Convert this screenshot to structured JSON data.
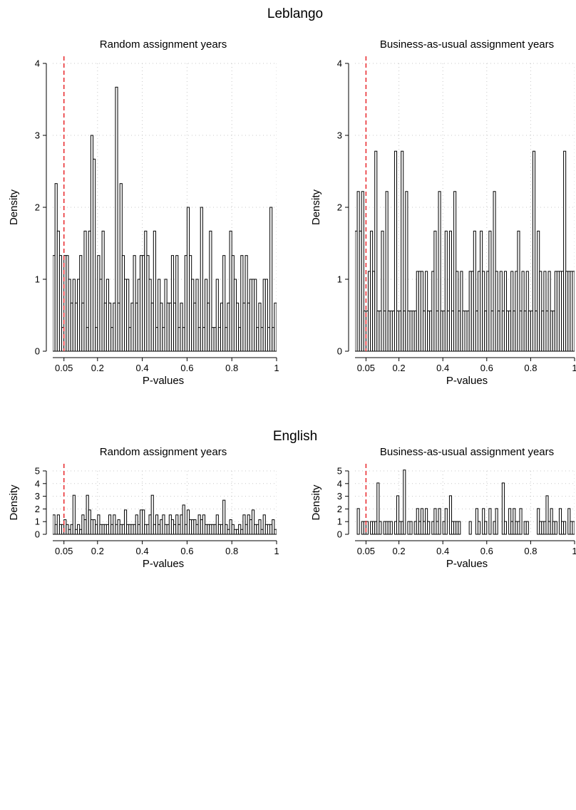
{
  "sections": [
    {
      "title": "Leblango"
    },
    {
      "title": "English"
    }
  ],
  "chart_data": [
    {
      "type": "bar",
      "section": "Leblango",
      "title": "Random assignment years",
      "xlabel": "P-values",
      "ylabel": "Density",
      "xlim": [
        0,
        1
      ],
      "ylim": [
        0,
        4
      ],
      "xticks": [
        0.05,
        0.2,
        0.4,
        0.6,
        0.8,
        1
      ],
      "xtick_labels": [
        "0.05",
        "0.2",
        "0.4",
        "0.6",
        "0.8",
        "1"
      ],
      "yticks": [
        0,
        1,
        2,
        3,
        4
      ],
      "ytick_labels": [
        "0",
        "1",
        "2",
        "3",
        "4"
      ],
      "reference_line": {
        "x": 0.05,
        "style": "dashed",
        "color": "#e8262a"
      },
      "grid": true,
      "bar_color": "#ffffff",
      "bar_edge": "#000000",
      "bin_width": 0.01,
      "bin_start": 0,
      "values": [
        1.33,
        2.33,
        1.67,
        1.33,
        0.33,
        1.33,
        1.33,
        1.0,
        0.67,
        1.0,
        0.67,
        1.0,
        1.33,
        0.67,
        1.67,
        0.33,
        1.67,
        3.0,
        2.67,
        0.33,
        1.33,
        1.0,
        1.67,
        0.67,
        1.0,
        0.67,
        0.33,
        0.67,
        3.67,
        0.67,
        2.33,
        1.33,
        1.0,
        1.0,
        0.33,
        0.67,
        1.33,
        0.67,
        1.0,
        1.33,
        1.33,
        1.67,
        1.33,
        1.0,
        0.67,
        1.67,
        0.33,
        1.0,
        0.67,
        0.33,
        1.0,
        0.67,
        0.67,
        1.33,
        0.67,
        1.33,
        0.33,
        0.67,
        0.33,
        1.33,
        2.0,
        1.33,
        1.0,
        0.67,
        1.0,
        0.33,
        2.0,
        0.33,
        1.0,
        0.67,
        1.67,
        0.33,
        0.33,
        1.0,
        0.33,
        0.67,
        1.33,
        0.33,
        0.67,
        1.67,
        1.33,
        1.0,
        0.67,
        0.33,
        1.33,
        0.67,
        1.33,
        0.67,
        1.0,
        1.0,
        1.0,
        0.33,
        0.67,
        0.33,
        1.0,
        1.0,
        0.33,
        2.0,
        0.33,
        0.67
      ]
    },
    {
      "type": "bar",
      "section": "Leblango",
      "title": "Business-as-usual assignment years",
      "xlabel": "P-values",
      "ylabel": "Density",
      "xlim": [
        0,
        1
      ],
      "ylim": [
        0,
        4
      ],
      "xticks": [
        0.05,
        0.2,
        0.4,
        0.6,
        0.8,
        1
      ],
      "xtick_labels": [
        "0.05",
        "0.2",
        "0.4",
        "0.6",
        "0.8",
        "1"
      ],
      "yticks": [
        0,
        1,
        2,
        3,
        4
      ],
      "ytick_labels": [
        "0",
        "1",
        "2",
        "3",
        "4"
      ],
      "reference_line": {
        "x": 0.05,
        "style": "dashed",
        "color": "#e8262a"
      },
      "grid": true,
      "bar_color": "#ffffff",
      "bar_edge": "#000000",
      "bin_width": 0.01,
      "bin_start": 0,
      "values": [
        1.67,
        2.22,
        1.67,
        2.22,
        0.56,
        0.56,
        1.11,
        1.67,
        1.11,
        2.78,
        0.56,
        0.56,
        1.67,
        0.56,
        2.22,
        0.56,
        0.56,
        0.56,
        2.78,
        0.56,
        0.56,
        2.78,
        0.56,
        2.22,
        0.56,
        0.56,
        0.56,
        0.56,
        1.11,
        1.11,
        1.11,
        0.56,
        1.11,
        0.56,
        0.56,
        1.11,
        1.67,
        0.56,
        2.22,
        0.56,
        0.56,
        1.67,
        0.56,
        1.67,
        0.56,
        2.22,
        1.11,
        0.56,
        1.11,
        0.56,
        0.56,
        0.56,
        1.11,
        1.11,
        1.67,
        0.56,
        1.11,
        1.67,
        1.11,
        0.56,
        1.11,
        1.67,
        0.56,
        2.22,
        1.11,
        0.56,
        1.11,
        0.56,
        1.11,
        0.56,
        0.56,
        1.11,
        0.56,
        1.11,
        1.67,
        0.56,
        1.11,
        0.56,
        1.11,
        0.56,
        0.56,
        2.78,
        0.56,
        1.67,
        1.11,
        0.56,
        1.11,
        0.56,
        1.11,
        0.56,
        0.56,
        1.11,
        1.11,
        1.11,
        1.11,
        2.78,
        1.11,
        1.11,
        1.11,
        1.11
      ]
    },
    {
      "type": "bar",
      "section": "English",
      "title": "Random assignment years",
      "xlabel": "P-values",
      "ylabel": "Density",
      "xlim": [
        0,
        1
      ],
      "ylim": [
        0,
        5
      ],
      "xticks": [
        0.05,
        0.2,
        0.4,
        0.6,
        0.8,
        1
      ],
      "xtick_labels": [
        "0.05",
        "0.2",
        "0.4",
        "0.6",
        "0.8",
        "1"
      ],
      "yticks": [
        0,
        1,
        2,
        3,
        4,
        5
      ],
      "ytick_labels": [
        "0",
        "1",
        "2",
        "3",
        "4",
        "5"
      ],
      "reference_line": {
        "x": 0.05,
        "style": "dashed",
        "color": "#e8262a"
      },
      "grid": true,
      "bar_color": "#ffffff",
      "bar_edge": "#000000",
      "bin_width": 0.01,
      "bin_start": 0,
      "values": [
        1.53,
        0.77,
        1.53,
        0.77,
        0.77,
        1.15,
        0.77,
        0.38,
        0.77,
        3.08,
        0.38,
        0.77,
        0.38,
        1.53,
        1.15,
        3.08,
        1.92,
        1.15,
        1.15,
        0.77,
        1.53,
        0.77,
        0.77,
        0.77,
        0.77,
        1.53,
        0.77,
        1.53,
        0.77,
        1.15,
        0.77,
        0.77,
        1.92,
        0.77,
        0.77,
        0.77,
        0.77,
        1.53,
        0.77,
        1.92,
        1.92,
        0.77,
        0.77,
        1.53,
        3.08,
        0.77,
        1.53,
        0.77,
        1.15,
        1.53,
        0.77,
        0.77,
        1.53,
        1.15,
        0.77,
        1.53,
        0.77,
        1.53,
        2.31,
        0.77,
        1.92,
        1.15,
        1.15,
        1.15,
        0.77,
        1.53,
        1.15,
        1.53,
        0.77,
        0.77,
        0.77,
        0.77,
        0.77,
        1.53,
        0.77,
        0.77,
        2.69,
        0.77,
        0.38,
        1.15,
        0.77,
        0.38,
        0.38,
        0.77,
        0.38,
        1.53,
        0.77,
        1.53,
        1.15,
        1.92,
        0.77,
        0.77,
        1.15,
        0.38,
        1.53,
        0.77,
        0.77,
        0.77,
        1.15,
        0.38
      ]
    },
    {
      "type": "bar",
      "section": "English",
      "title": "Business-as-usual assignment years",
      "xlabel": "P-values",
      "ylabel": "Density",
      "xlim": [
        0,
        1
      ],
      "ylim": [
        0,
        5
      ],
      "xticks": [
        0.05,
        0.2,
        0.4,
        0.6,
        0.8,
        1
      ],
      "xtick_labels": [
        "0.05",
        "0.2",
        "0.4",
        "0.6",
        "0.8",
        "1"
      ],
      "yticks": [
        0,
        1,
        2,
        3,
        4,
        5
      ],
      "ytick_labels": [
        "0",
        "1",
        "2",
        "3",
        "4",
        "5"
      ],
      "reference_line": {
        "x": 0.05,
        "style": "dashed",
        "color": "#e8262a"
      },
      "grid": true,
      "bar_color": "#ffffff",
      "bar_edge": "#000000",
      "bin_width": 0.01,
      "bin_start": 0,
      "values": [
        0,
        2.03,
        0,
        1.01,
        1.01,
        1.01,
        0,
        1.01,
        1.01,
        1.01,
        4.05,
        1.01,
        0,
        1.01,
        1.01,
        1.01,
        1.01,
        0,
        1.01,
        3.04,
        1.01,
        1.01,
        5.07,
        0,
        1.01,
        1.01,
        0,
        1.01,
        2.03,
        1.01,
        2.03,
        1.01,
        2.03,
        1.01,
        0,
        1.01,
        2.03,
        1.01,
        2.03,
        0,
        1.01,
        2.03,
        0,
        3.04,
        1.01,
        1.01,
        1.01,
        1.01,
        0,
        0,
        0,
        0,
        1.01,
        0,
        0,
        2.03,
        1.01,
        0,
        2.03,
        1.01,
        0,
        2.03,
        0,
        1.01,
        2.03,
        0,
        0,
        4.05,
        1.01,
        0,
        2.03,
        1.01,
        2.03,
        1.01,
        1.01,
        2.03,
        0,
        1.01,
        1.01,
        0,
        0,
        0,
        0,
        2.03,
        1.01,
        1.01,
        1.01,
        3.04,
        1.01,
        2.03,
        1.01,
        1.01,
        0,
        2.03,
        1.01,
        1.01,
        0,
        2.03,
        1.01,
        1.01
      ]
    }
  ]
}
